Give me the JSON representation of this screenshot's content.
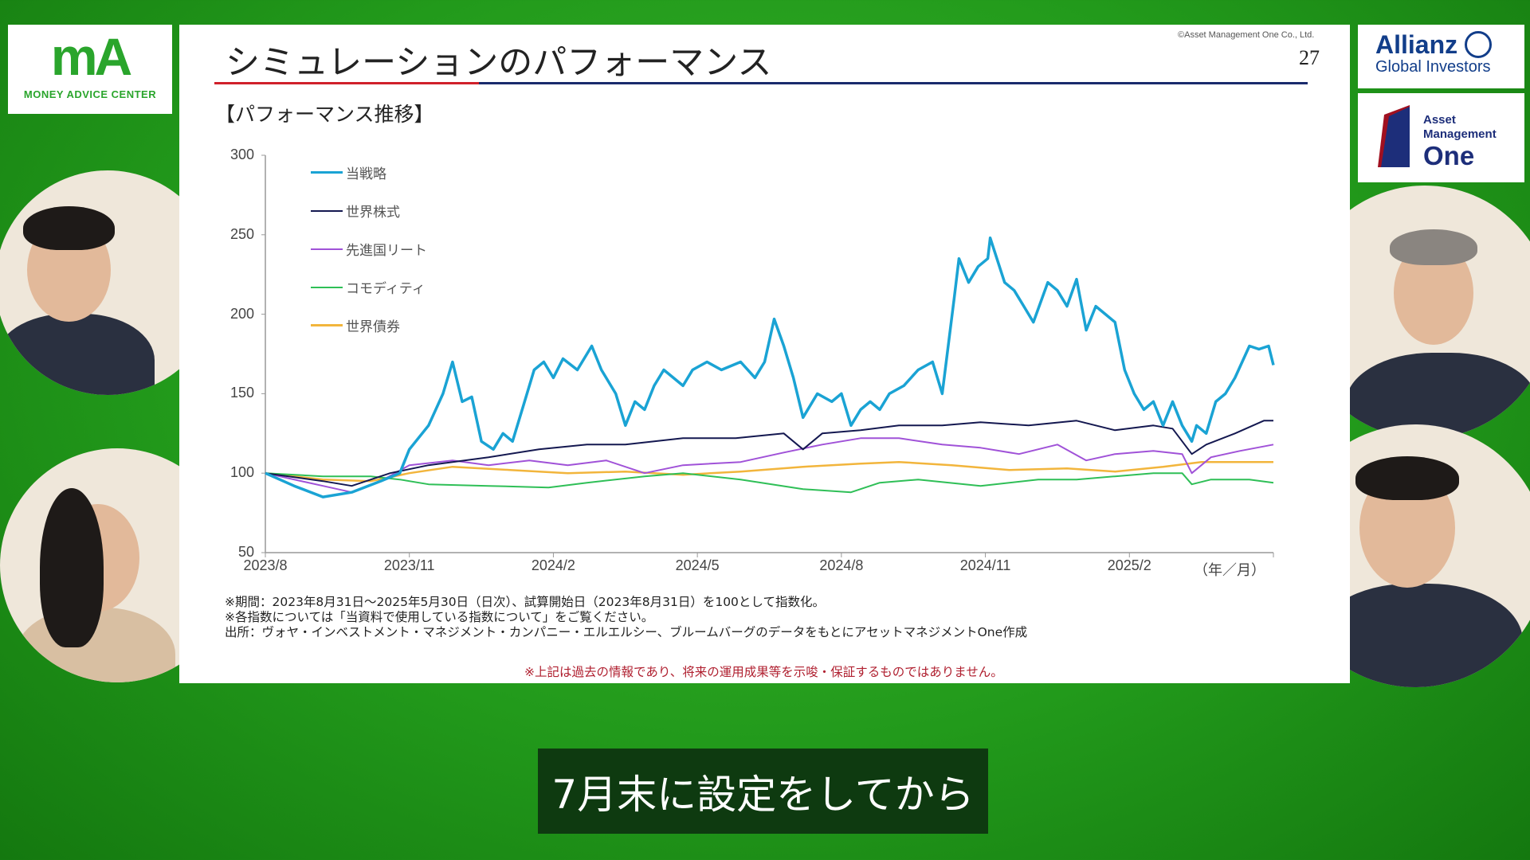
{
  "logos": {
    "ma_mark": "mA",
    "ma_text": "MONEY ADVICE CENTER",
    "allianz": "Allianz",
    "allianz_sub": "Global Investors",
    "amo_line1": "Asset",
    "amo_line2": "Management",
    "amo_line3": "One"
  },
  "slide": {
    "title": "シミュレーションのパフォーマンス",
    "copyright": "©Asset Management One Co., Ltd.",
    "page": "27",
    "section": "【パフォーマンス推移】",
    "notes": [
      "※期間：2023年8月31日～2025年5月30日（日次）、試算開始日（2023年8月31日）を100として指数化。",
      "※各指数については「当資料で使用している指数について」をご覧ください。",
      "出所：ヴォヤ・インベストメント・マネジメント・カンパニー・エルエルシー、ブルームバーグのデータをもとにアセットマネジメントOne作成"
    ],
    "disclaimer": "※上記は過去の情報であり、将来の運用成果等を示唆・保証するものではありません。"
  },
  "caption": "7月末に設定をしてから",
  "chart_data": {
    "type": "line",
    "title": "",
    "xlabel": "（年／月）",
    "ylabel": "",
    "x_unit": "months since 2023/8/31",
    "xlim": [
      0,
      21
    ],
    "ylim": [
      50,
      300
    ],
    "yticks": [
      300,
      250,
      200,
      150,
      100,
      50
    ],
    "xticks": [
      {
        "m": 0,
        "label": "2023/8"
      },
      {
        "m": 3,
        "label": "2023/11"
      },
      {
        "m": 6,
        "label": "2024/2"
      },
      {
        "m": 9,
        "label": "2024/5"
      },
      {
        "m": 12,
        "label": "2024/8"
      },
      {
        "m": 15,
        "label": "2024/11"
      },
      {
        "m": 18,
        "label": "2025/2"
      }
    ],
    "legend_position": "top-left",
    "series": [
      {
        "name": "当戦略",
        "color": "#1aa3d4",
        "width": 3.5,
        "points": [
          [
            0,
            100
          ],
          [
            0.6,
            92
          ],
          [
            1.2,
            85
          ],
          [
            1.8,
            88
          ],
          [
            2.4,
            95
          ],
          [
            2.8,
            100
          ],
          [
            3,
            115
          ],
          [
            3.4,
            130
          ],
          [
            3.7,
            150
          ],
          [
            3.9,
            170
          ],
          [
            4.1,
            145
          ],
          [
            4.3,
            148
          ],
          [
            4.5,
            120
          ],
          [
            4.75,
            115
          ],
          [
            4.95,
            125
          ],
          [
            5.15,
            120
          ],
          [
            5.4,
            145
          ],
          [
            5.6,
            165
          ],
          [
            5.8,
            170
          ],
          [
            6,
            160
          ],
          [
            6.2,
            172
          ],
          [
            6.5,
            165
          ],
          [
            6.8,
            180
          ],
          [
            7,
            165
          ],
          [
            7.3,
            150
          ],
          [
            7.5,
            130
          ],
          [
            7.7,
            145
          ],
          [
            7.9,
            140
          ],
          [
            8.1,
            155
          ],
          [
            8.3,
            165
          ],
          [
            8.5,
            160
          ],
          [
            8.7,
            155
          ],
          [
            8.9,
            165
          ],
          [
            9.2,
            170
          ],
          [
            9.5,
            165
          ],
          [
            9.9,
            170
          ],
          [
            10.2,
            160
          ],
          [
            10.4,
            170
          ],
          [
            10.6,
            197
          ],
          [
            10.8,
            180
          ],
          [
            11,
            160
          ],
          [
            11.2,
            135
          ],
          [
            11.5,
            150
          ],
          [
            11.8,
            145
          ],
          [
            12,
            150
          ],
          [
            12.2,
            130
          ],
          [
            12.4,
            140
          ],
          [
            12.6,
            145
          ],
          [
            12.8,
            140
          ],
          [
            13,
            150
          ],
          [
            13.3,
            155
          ],
          [
            13.6,
            165
          ],
          [
            13.9,
            170
          ],
          [
            14.1,
            150
          ],
          [
            14.35,
            210
          ],
          [
            14.45,
            235
          ],
          [
            14.65,
            220
          ],
          [
            14.85,
            230
          ],
          [
            15.05,
            235
          ],
          [
            15.1,
            248
          ],
          [
            15.4,
            220
          ],
          [
            15.6,
            215
          ],
          [
            15.8,
            205
          ],
          [
            16,
            195
          ],
          [
            16.3,
            220
          ],
          [
            16.5,
            215
          ],
          [
            16.7,
            205
          ],
          [
            16.9,
            222
          ],
          [
            17.1,
            190
          ],
          [
            17.3,
            205
          ],
          [
            17.5,
            200
          ],
          [
            17.7,
            195
          ],
          [
            17.9,
            165
          ],
          [
            18.1,
            150
          ],
          [
            18.3,
            140
          ],
          [
            18.5,
            145
          ],
          [
            18.7,
            130
          ],
          [
            18.9,
            145
          ],
          [
            19.1,
            130
          ],
          [
            19.3,
            120
          ],
          [
            19.4,
            130
          ],
          [
            19.6,
            125
          ],
          [
            19.8,
            145
          ],
          [
            20,
            150
          ],
          [
            20.2,
            160
          ],
          [
            20.5,
            180
          ],
          [
            20.7,
            178
          ],
          [
            20.9,
            180
          ],
          [
            21,
            168
          ]
        ]
      },
      {
        "name": "世界株式",
        "color": "#141850",
        "width": 2,
        "points": [
          [
            0,
            100
          ],
          [
            1.2,
            95
          ],
          [
            1.8,
            92
          ],
          [
            2.6,
            100
          ],
          [
            3.4,
            105
          ],
          [
            4.65,
            110
          ],
          [
            5.7,
            115
          ],
          [
            6.7,
            118
          ],
          [
            7.5,
            118
          ],
          [
            8.7,
            122
          ],
          [
            9.8,
            122
          ],
          [
            10.8,
            125
          ],
          [
            11.2,
            115
          ],
          [
            11.6,
            125
          ],
          [
            12.4,
            127
          ],
          [
            13.2,
            130
          ],
          [
            14.1,
            130
          ],
          [
            14.9,
            132
          ],
          [
            15.9,
            130
          ],
          [
            16.9,
            133
          ],
          [
            17.7,
            127
          ],
          [
            18.5,
            130
          ],
          [
            18.9,
            128
          ],
          [
            19.3,
            112
          ],
          [
            19.6,
            118
          ],
          [
            20.2,
            125
          ],
          [
            20.8,
            133
          ],
          [
            21,
            133
          ]
        ]
      },
      {
        "name": "先進国リート",
        "color": "#a052d8",
        "width": 2,
        "points": [
          [
            0,
            100
          ],
          [
            1.2,
            92
          ],
          [
            1.8,
            88
          ],
          [
            2.4,
            95
          ],
          [
            3,
            105
          ],
          [
            3.9,
            108
          ],
          [
            4.65,
            105
          ],
          [
            5.5,
            108
          ],
          [
            6.3,
            105
          ],
          [
            7.1,
            108
          ],
          [
            7.9,
            100
          ],
          [
            8.7,
            105
          ],
          [
            9.9,
            107
          ],
          [
            10.8,
            113
          ],
          [
            11.6,
            118
          ],
          [
            12.4,
            122
          ],
          [
            13.2,
            122
          ],
          [
            14.1,
            118
          ],
          [
            14.9,
            116
          ],
          [
            15.7,
            112
          ],
          [
            16.5,
            118
          ],
          [
            17.1,
            108
          ],
          [
            17.7,
            112
          ],
          [
            18.5,
            114
          ],
          [
            19.1,
            112
          ],
          [
            19.3,
            100
          ],
          [
            19.7,
            110
          ],
          [
            20.3,
            114
          ],
          [
            21,
            118
          ]
        ]
      },
      {
        "name": "コモディティ",
        "color": "#2fbf57",
        "width": 2,
        "points": [
          [
            0,
            100
          ],
          [
            1.2,
            98
          ],
          [
            2.2,
            98
          ],
          [
            2.8,
            96
          ],
          [
            3.4,
            93
          ],
          [
            4.65,
            92
          ],
          [
            5.9,
            91
          ],
          [
            6.7,
            94
          ],
          [
            7.9,
            98
          ],
          [
            8.7,
            100
          ],
          [
            9.9,
            96
          ],
          [
            11.2,
            90
          ],
          [
            12.2,
            88
          ],
          [
            12.8,
            94
          ],
          [
            13.6,
            96
          ],
          [
            14.9,
            92
          ],
          [
            16.1,
            96
          ],
          [
            16.9,
            96
          ],
          [
            17.7,
            98
          ],
          [
            18.5,
            100
          ],
          [
            19.1,
            100
          ],
          [
            19.3,
            93
          ],
          [
            19.7,
            96
          ],
          [
            20.5,
            96
          ],
          [
            21,
            94
          ]
        ]
      },
      {
        "name": "世界債券",
        "color": "#f2b53c",
        "width": 2.5,
        "points": [
          [
            0,
            100
          ],
          [
            1.2,
            96
          ],
          [
            2.2,
            95
          ],
          [
            3,
            100
          ],
          [
            3.9,
            104
          ],
          [
            5.1,
            102
          ],
          [
            6.3,
            100
          ],
          [
            7.5,
            101
          ],
          [
            8.7,
            99
          ],
          [
            9.9,
            101
          ],
          [
            11.2,
            104
          ],
          [
            12.4,
            106
          ],
          [
            13.2,
            107
          ],
          [
            14.3,
            105
          ],
          [
            15.5,
            102
          ],
          [
            16.7,
            103
          ],
          [
            17.7,
            101
          ],
          [
            18.7,
            104
          ],
          [
            19.5,
            107
          ],
          [
            21,
            107
          ]
        ]
      }
    ]
  }
}
